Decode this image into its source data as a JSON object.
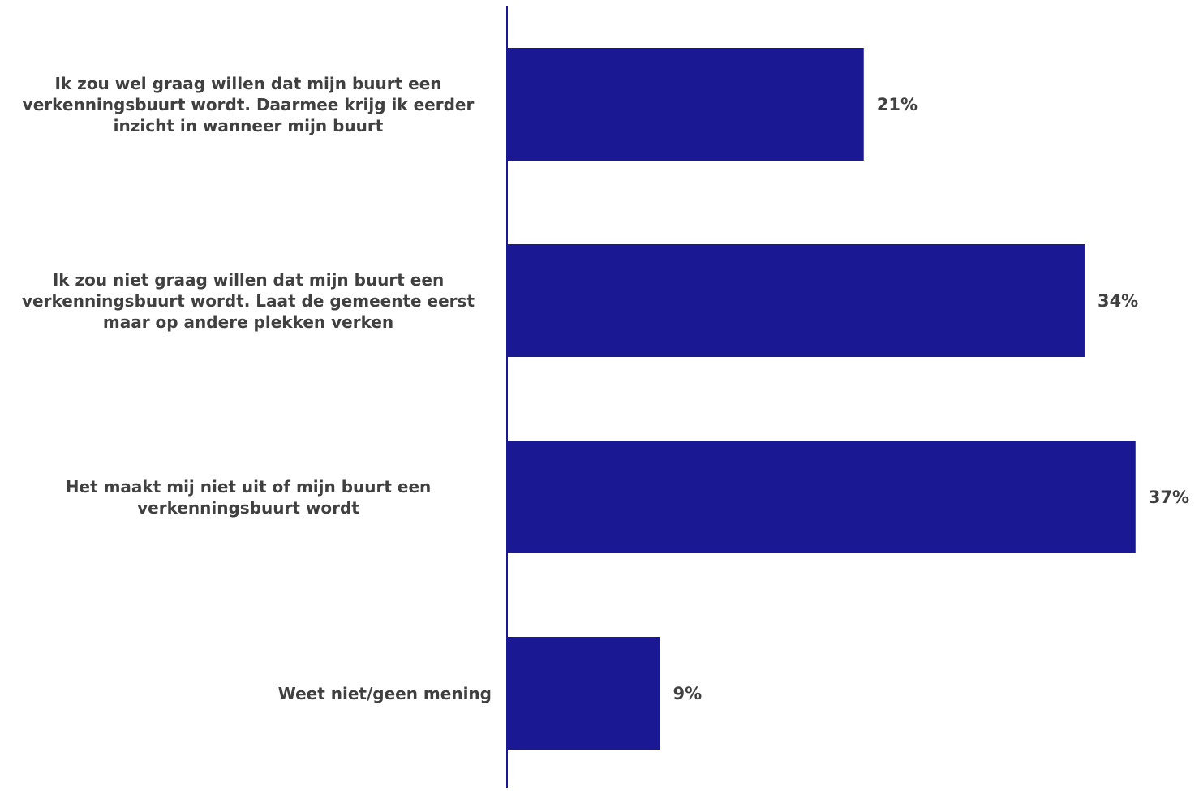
{
  "chart_data": {
    "type": "bar",
    "orientation": "horizontal",
    "categories": [
      "Ik zou wel graag willen dat mijn buurt een verkenningsbuurt wordt. Daarmee krijg ik eerder inzicht in wanneer mijn buurt",
      "Ik zou niet graag willen dat mijn buurt een verkenningsbuurt wordt. Laat de gemeente eerst maar op andere plekken verken",
      "Het maakt mij niet uit of mijn buurt een verkenningsbuurt wordt",
      "Weet niet/geen mening"
    ],
    "values": [
      21,
      34,
      37,
      9
    ],
    "value_labels": [
      "21%",
      "34%",
      "37%",
      "9%"
    ],
    "xlim": [
      0,
      40
    ],
    "title": "",
    "xlabel": "",
    "ylabel": "",
    "grid": false,
    "legend": "none",
    "colors": {
      "bar": "#1a1893",
      "axis": "#1a1893",
      "text": "#404040"
    }
  }
}
